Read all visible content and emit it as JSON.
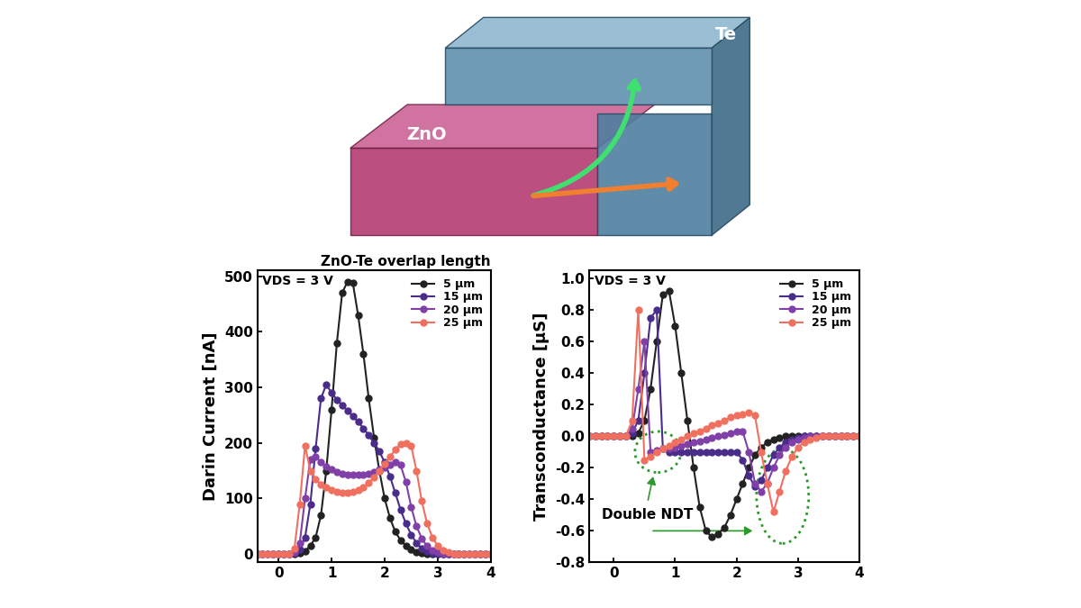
{
  "illustration": {
    "labels": [
      "ZnO",
      "Te"
    ]
  },
  "chart_data": [
    {
      "type": "line",
      "title": "ZnO-Te overlap length",
      "y_label": "Darin Current [nA]",
      "annotations": [
        "VDS = 3 V"
      ],
      "marker": "circle",
      "legend": "upper right",
      "xlim": [
        -0.4,
        4.0
      ],
      "xticks": [
        0,
        1,
        2,
        3,
        4
      ],
      "ylim": [
        -15,
        510
      ],
      "yticks": [
        0,
        100,
        200,
        300,
        400,
        500
      ],
      "x": [
        -0.4,
        -0.3,
        -0.2,
        -0.1,
        0.0,
        0.1,
        0.2,
        0.3,
        0.4,
        0.5,
        0.6,
        0.7,
        0.8,
        0.9,
        1.0,
        1.1,
        1.2,
        1.3,
        1.4,
        1.5,
        1.6,
        1.7,
        1.8,
        1.9,
        2.0,
        2.1,
        2.2,
        2.3,
        2.4,
        2.5,
        2.6,
        2.7,
        2.8,
        2.9,
        3.0,
        3.1,
        3.2,
        3.3,
        3.4,
        3.5,
        3.6,
        3.7,
        3.8,
        3.9,
        4.0
      ],
      "series": [
        {
          "name": "5 μm",
          "color": "#222222",
          "values": [
            0,
            0,
            0,
            0,
            0,
            0,
            0,
            0,
            2,
            5,
            15,
            30,
            70,
            150,
            260,
            380,
            470,
            490,
            488,
            430,
            360,
            280,
            210,
            150,
            100,
            65,
            40,
            25,
            15,
            8,
            4,
            2,
            1,
            0,
            0,
            0,
            0,
            0,
            0,
            0,
            0,
            0,
            0,
            0,
            0
          ]
        },
        {
          "name": "15 μm",
          "color": "#4a2c8a",
          "values": [
            0,
            0,
            0,
            0,
            0,
            0,
            0,
            2,
            8,
            30,
            90,
            190,
            280,
            305,
            290,
            278,
            268,
            258,
            248,
            238,
            226,
            214,
            200,
            185,
            165,
            140,
            110,
            80,
            55,
            35,
            20,
            10,
            5,
            2,
            1,
            0,
            0,
            0,
            0,
            0,
            0,
            0,
            0,
            0,
            0
          ]
        },
        {
          "name": "20 μm",
          "color": "#8040a8",
          "values": [
            0,
            0,
            0,
            0,
            0,
            0,
            0,
            3,
            20,
            100,
            170,
            175,
            165,
            158,
            152,
            148,
            145,
            143,
            142,
            142,
            143,
            145,
            148,
            152,
            156,
            160,
            165,
            160,
            130,
            85,
            50,
            28,
            14,
            7,
            3,
            1,
            0,
            0,
            0,
            0,
            0,
            0,
            0,
            0,
            0
          ]
        },
        {
          "name": "25 μm",
          "color": "#f07060",
          "values": [
            0,
            0,
            0,
            0,
            0,
            0,
            0,
            10,
            90,
            195,
            150,
            135,
            125,
            120,
            115,
            112,
            110,
            110,
            112,
            115,
            120,
            128,
            138,
            150,
            162,
            175,
            188,
            198,
            200,
            195,
            150,
            95,
            55,
            30,
            15,
            7,
            3,
            1,
            0,
            0,
            0,
            0,
            0,
            0,
            0
          ]
        }
      ]
    },
    {
      "type": "line",
      "y_label": "Transconductance [μS]",
      "annotations": [
        "VDS = 3 V",
        "Double NDT"
      ],
      "marker": "circle",
      "legend": "upper right",
      "xlim": [
        -0.4,
        4.0
      ],
      "xticks": [
        0,
        1,
        2,
        3,
        4
      ],
      "ylim": [
        -0.8,
        1.05
      ],
      "yticks": [
        -0.8,
        -0.6,
        -0.4,
        -0.2,
        0.0,
        0.2,
        0.4,
        0.6,
        0.8,
        1.0
      ],
      "x": [
        -0.4,
        -0.3,
        -0.2,
        -0.1,
        0.0,
        0.1,
        0.2,
        0.3,
        0.4,
        0.5,
        0.6,
        0.7,
        0.8,
        0.9,
        1.0,
        1.1,
        1.2,
        1.3,
        1.4,
        1.5,
        1.6,
        1.7,
        1.8,
        1.9,
        2.0,
        2.1,
        2.2,
        2.3,
        2.4,
        2.5,
        2.6,
        2.7,
        2.8,
        2.9,
        3.0,
        3.1,
        3.2,
        3.3,
        3.4,
        3.5,
        3.6,
        3.7,
        3.8,
        3.9,
        4.0
      ],
      "series": [
        {
          "name": "5 μm",
          "color": "#222222",
          "values": [
            0,
            0,
            0,
            0,
            0,
            0,
            0,
            0.0,
            0.02,
            0.1,
            0.3,
            0.6,
            0.9,
            0.92,
            0.7,
            0.4,
            0.1,
            -0.2,
            -0.45,
            -0.6,
            -0.64,
            -0.62,
            -0.58,
            -0.5,
            -0.4,
            -0.3,
            -0.2,
            -0.12,
            -0.07,
            -0.04,
            -0.02,
            -0.01,
            0,
            0,
            0,
            0,
            0,
            0,
            0,
            0,
            0,
            0,
            0,
            0,
            0
          ]
        },
        {
          "name": "15 μm",
          "color": "#4a2c8a",
          "values": [
            0,
            0,
            0,
            0,
            0,
            0,
            0,
            0.02,
            0.1,
            0.4,
            0.75,
            0.8,
            -0.08,
            -0.1,
            -0.1,
            -0.1,
            -0.1,
            -0.1,
            -0.1,
            -0.1,
            -0.1,
            -0.1,
            -0.1,
            -0.1,
            -0.1,
            -0.15,
            -0.25,
            -0.32,
            -0.28,
            -0.2,
            -0.12,
            -0.07,
            -0.04,
            -0.02,
            -0.01,
            0,
            0,
            0,
            0,
            0,
            0,
            0,
            0,
            0,
            0
          ]
        },
        {
          "name": "20 μm",
          "color": "#8040a8",
          "values": [
            0,
            0,
            0,
            0,
            0,
            0,
            0,
            0.05,
            0.3,
            0.6,
            -0.1,
            -0.09,
            -0.08,
            -0.08,
            -0.07,
            -0.06,
            -0.05,
            -0.04,
            -0.03,
            -0.02,
            -0.01,
            0.0,
            0.01,
            0.02,
            0.03,
            0.03,
            -0.1,
            -0.3,
            -0.35,
            -0.3,
            -0.2,
            -0.12,
            -0.07,
            -0.04,
            -0.02,
            -0.01,
            0,
            0,
            0,
            0,
            0,
            0,
            0,
            0,
            0
          ]
        },
        {
          "name": "25 μm",
          "color": "#f07060",
          "values": [
            0,
            0,
            0,
            0,
            0,
            0,
            0,
            0.1,
            0.8,
            -0.15,
            -0.13,
            -0.1,
            -0.08,
            -0.06,
            -0.04,
            -0.02,
            0.0,
            0.02,
            0.03,
            0.05,
            0.07,
            0.08,
            0.1,
            0.12,
            0.13,
            0.14,
            0.15,
            0.13,
            -0.1,
            -0.3,
            -0.48,
            -0.35,
            -0.22,
            -0.13,
            -0.07,
            -0.04,
            -0.02,
            -0.01,
            0,
            0,
            0,
            0,
            0,
            0,
            0
          ]
        }
      ]
    }
  ]
}
